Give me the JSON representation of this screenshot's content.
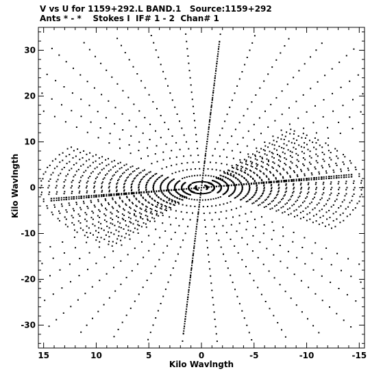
{
  "header": {
    "line1": "V vs U for 1159+292.L BAND.1   Source:1159+292",
    "line2": "Ants * - *    Stokes I  IF# 1 - 2  Chan# 1"
  },
  "chart_data": {
    "type": "scatter",
    "title": "V vs U for 1159+292.L BAND.1   Source:1159+292",
    "subtitle": "Ants * - *    Stokes I  IF# 1 - 2  Chan# 1",
    "xlabel": "Kilo Wavlngth",
    "ylabel": "Kilo Wavlngth",
    "xlim": [
      15.5,
      -15.5
    ],
    "ylim": [
      -35,
      35
    ],
    "x_reversed": true,
    "grid": false,
    "legend": "none",
    "xticks": [
      15,
      10,
      5,
      0,
      -5,
      -10,
      -15
    ],
    "yticks": [
      30,
      20,
      10,
      0,
      -10,
      -20,
      -30
    ],
    "point_color": "#000000",
    "arm_tips": [
      {
        "name": "north-arm",
        "u": -1.8,
        "v": 33.5
      },
      {
        "name": "southeast-arm",
        "u": 15.0,
        "v": -3.0
      },
      {
        "name": "southwest-arm",
        "u": -15.0,
        "v": 2.5
      }
    ],
    "tracks": 22,
    "samples_per_track": 17,
    "track_span_deg": 90
  }
}
